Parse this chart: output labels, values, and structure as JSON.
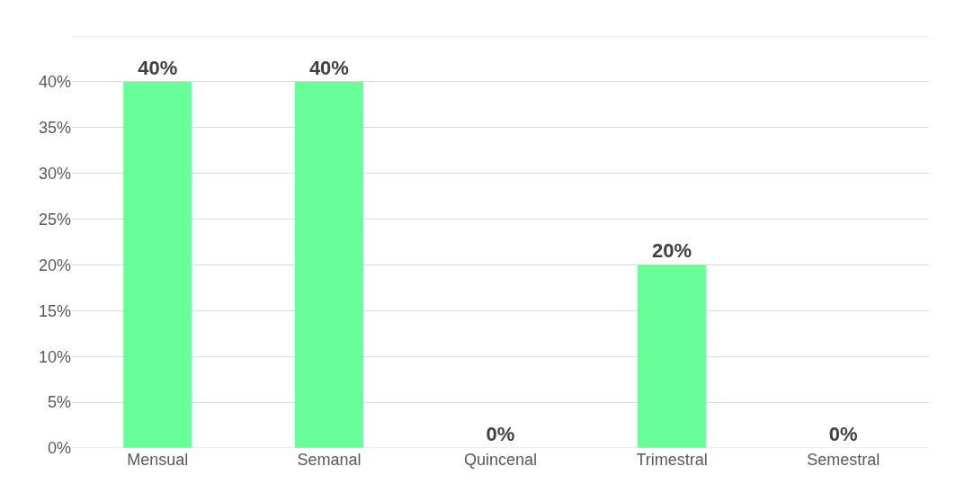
{
  "chart_data": {
    "type": "bar",
    "categories": [
      "Mensual",
      "Semanal",
      "Quincenal",
      "Trimestral",
      "Semestral"
    ],
    "values": [
      40,
      40,
      0,
      20,
      0
    ],
    "value_labels": [
      "40%",
      "40%",
      "0%",
      "20%",
      "0%"
    ],
    "color": "#66ff99",
    "ylim": [
      0,
      45
    ],
    "yticks": [
      {
        "value": 0,
        "label": "0%"
      },
      {
        "value": 5,
        "label": "5%"
      },
      {
        "value": 10,
        "label": "10%"
      },
      {
        "value": 15,
        "label": "15%"
      },
      {
        "value": 20,
        "label": "20%"
      },
      {
        "value": 25,
        "label": "25%"
      },
      {
        "value": 30,
        "label": "30%"
      },
      {
        "value": 35,
        "label": "35%"
      },
      {
        "value": 40,
        "label": "40%"
      },
      {
        "value": 45,
        "label": null
      }
    ],
    "grid": "y",
    "legend": false
  }
}
